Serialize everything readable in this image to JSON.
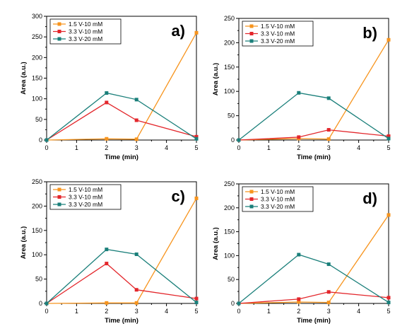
{
  "chart_data": [
    {
      "type": "line",
      "panel_label": "a)",
      "xlabel": "Time (min)",
      "ylabel": "Area (a.u.)",
      "xlim": [
        0,
        5
      ],
      "ylim": [
        0,
        300
      ],
      "xticks": [
        0,
        1,
        2,
        3,
        4,
        5
      ],
      "yticks": [
        0,
        50,
        100,
        150,
        200,
        250,
        300
      ],
      "legend": "top-left",
      "grid": false,
      "series": [
        {
          "name": "1.5 V-10 mM",
          "color": "#f7941d",
          "x": [
            0,
            2,
            3,
            5
          ],
          "y": [
            0,
            3,
            2,
            260
          ]
        },
        {
          "name": "3.3 V-10 mM",
          "color": "#e3262b",
          "x": [
            0,
            2,
            3,
            5
          ],
          "y": [
            0,
            91,
            48,
            8
          ]
        },
        {
          "name": "3.3 V-20 mM",
          "color": "#1a7f7a",
          "x": [
            0,
            2,
            3,
            5
          ],
          "y": [
            0,
            114,
            98,
            3
          ]
        }
      ]
    },
    {
      "type": "line",
      "panel_label": "b)",
      "xlabel": "Time (min)",
      "ylabel": "Area (a.u.)",
      "xlim": [
        0,
        5
      ],
      "ylim": [
        0,
        250
      ],
      "xticks": [
        0,
        1,
        2,
        3,
        4,
        5
      ],
      "yticks": [
        0,
        50,
        100,
        150,
        200,
        250
      ],
      "legend": "top-left",
      "grid": false,
      "series": [
        {
          "name": "1.5 V-10 mM",
          "color": "#f7941d",
          "x": [
            0,
            2,
            3,
            5
          ],
          "y": [
            0,
            3,
            2,
            206
          ]
        },
        {
          "name": "3.3 V-10 mM",
          "color": "#e3262b",
          "x": [
            0,
            2,
            3,
            5
          ],
          "y": [
            0,
            6,
            21,
            8
          ]
        },
        {
          "name": "3.3 V-20 mM",
          "color": "#1a7f7a",
          "x": [
            0,
            2,
            3,
            5
          ],
          "y": [
            0,
            97,
            86,
            3
          ]
        }
      ]
    },
    {
      "type": "line",
      "panel_label": "c)",
      "xlabel": "Time (min)",
      "ylabel": "Area (a.u.)",
      "xlim": [
        0,
        5
      ],
      "ylim": [
        0,
        250
      ],
      "xticks": [
        0,
        1,
        2,
        3,
        4,
        5
      ],
      "yticks": [
        0,
        50,
        100,
        150,
        200,
        250
      ],
      "legend": "top-left",
      "grid": false,
      "series": [
        {
          "name": "1.5 V-10 mM",
          "color": "#f7941d",
          "x": [
            0,
            2,
            3,
            5
          ],
          "y": [
            0,
            1,
            1,
            216
          ]
        },
        {
          "name": "3.3 V-10 mM",
          "color": "#e3262b",
          "x": [
            0,
            2,
            3,
            5
          ],
          "y": [
            0,
            82,
            28,
            10
          ]
        },
        {
          "name": "3.3 V-20 mM",
          "color": "#1a7f7a",
          "x": [
            0,
            2,
            3,
            5
          ],
          "y": [
            0,
            111,
            101,
            2
          ]
        }
      ]
    },
    {
      "type": "line",
      "panel_label": "d)",
      "xlabel": "Time (min)",
      "ylabel": "Area (a.u.)",
      "xlim": [
        0,
        5
      ],
      "ylim": [
        0,
        250
      ],
      "xticks": [
        0,
        1,
        2,
        3,
        4,
        5
      ],
      "yticks": [
        0,
        50,
        100,
        150,
        200,
        250
      ],
      "legend": "top-left",
      "grid": false,
      "series": [
        {
          "name": "1.5 V-10 mM",
          "color": "#f7941d",
          "x": [
            0,
            2,
            3,
            5
          ],
          "y": [
            0,
            3,
            2,
            185
          ]
        },
        {
          "name": "3.3 V-10 mM",
          "color": "#e3262b",
          "x": [
            0,
            2,
            3,
            5
          ],
          "y": [
            0,
            9,
            24,
            12
          ]
        },
        {
          "name": "3.3 V-20 mM",
          "color": "#1a7f7a",
          "x": [
            0,
            2,
            3,
            5
          ],
          "y": [
            0,
            102,
            82,
            2
          ]
        }
      ]
    }
  ]
}
